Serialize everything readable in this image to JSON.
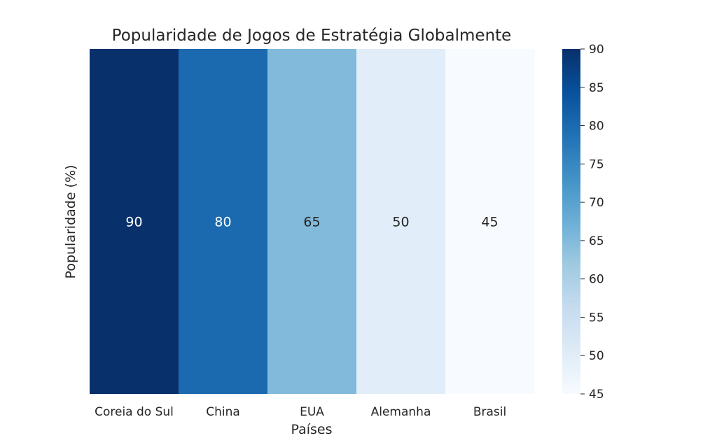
{
  "chart_data": {
    "type": "heatmap",
    "title": "Popularidade de Jogos de Estratégia Globalmente",
    "xlabel": "Países",
    "ylabel": "Popularidade (%)",
    "categories": [
      "Coreia do Sul",
      "China",
      "EUA",
      "Alemanha",
      "Brasil"
    ],
    "values": [
      90,
      80,
      65,
      50,
      45
    ],
    "colormap": "Blues",
    "colorbar": {
      "range": [
        45,
        90
      ],
      "ticks": [
        45,
        50,
        55,
        60,
        65,
        70,
        75,
        80,
        85,
        90
      ]
    },
    "annotations": true
  }
}
